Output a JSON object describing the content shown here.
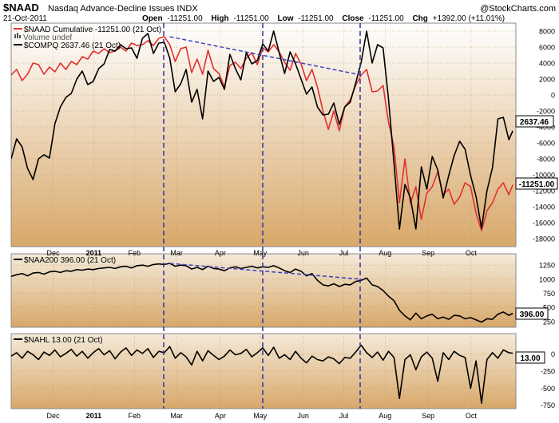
{
  "header": {
    "symbol": "$NAAD",
    "description": "Nasdaq Advance-Decline Issues  INDX",
    "brand": "@StockCharts.com",
    "date": "21-Oct-2011",
    "open_label": "Open",
    "open_value": "-11251.00",
    "high_label": "High",
    "high_value": "-11251.00",
    "low_label": "Low",
    "low_value": "-11251.00",
    "close_label": "Close",
    "close_value": "-11251.00",
    "chg_label": "Chg",
    "chg_value": "+1392.00 (+11.01%)"
  },
  "colors": {
    "panel_bg_top": "#ffffff",
    "panel_bg_bottom": "#d8a86a",
    "naad_line": "#e03030",
    "compq_line": "#000000",
    "trendline": "#4040c0",
    "grid": "#b08050",
    "last_value_box": "#ffffff"
  },
  "chart_data": [
    {
      "type": "line",
      "panel": "main",
      "ylim": [
        -19000,
        9000
      ],
      "yticks": [
        8000,
        6000,
        4000,
        2000,
        0,
        -2000,
        -4000,
        -6000,
        -8000,
        -10000,
        -12000,
        -14000,
        -16000,
        -18000
      ],
      "grid": true,
      "legend_position": "top-left",
      "legend": [
        "$NAAD Cumulative -11251.00 (21 Oct)",
        "Volume undef",
        "$COMPQ 2637.46 (21 Oct)"
      ],
      "last_values": [
        "2637.46",
        "-11251.00"
      ],
      "series": [
        {
          "name": "$NAAD Cumulative",
          "color": "#e03030",
          "x": [
            0,
            7,
            14,
            21,
            28,
            35,
            42,
            49,
            56,
            63,
            70,
            77,
            84,
            91,
            98,
            105,
            112,
            119,
            126,
            133,
            140,
            147,
            154,
            161,
            168,
            175,
            182,
            189,
            196,
            203,
            210,
            217,
            224,
            231,
            238,
            245,
            252,
            259,
            266,
            273,
            280,
            287,
            294,
            301,
            308,
            315,
            322,
            329,
            336,
            343,
            350,
            357,
            364,
            371,
            378,
            385,
            392,
            399,
            406,
            413,
            420,
            427,
            434,
            441,
            448,
            455,
            462,
            469,
            476,
            483,
            490,
            497,
            504,
            511,
            518,
            525,
            532,
            539,
            546,
            553,
            560,
            567,
            574,
            581,
            588,
            595,
            602,
            609,
            616,
            623,
            630,
            637,
            642
          ],
          "y": [
            2500,
            3200,
            1800,
            2600,
            4000,
            3800,
            2600,
            3500,
            2900,
            4000,
            3200,
            4200,
            3800,
            4800,
            4500,
            5500,
            5200,
            5800,
            5300,
            5500,
            6000,
            5500,
            6500,
            6200,
            6300,
            6800,
            6200,
            7100,
            7300,
            6300,
            4200,
            5800,
            6000,
            2800,
            4500,
            2600,
            5600,
            3300,
            2700,
            1000,
            3700,
            4100,
            3300,
            4600,
            5300,
            3800,
            5900,
            5400,
            6300,
            5400,
            4100,
            3100,
            5200,
            3900,
            1800,
            3200,
            1000,
            -2000,
            -4300,
            -2000,
            -4500,
            -1500,
            -600,
            1200,
            2500,
            3200,
            400,
            500,
            1200,
            -3400,
            -6500,
            -13500,
            -8000,
            -13600,
            -11500,
            -15600,
            -12300,
            -11500,
            -9600,
            -12500,
            -11800,
            -13700,
            -12800,
            -11000,
            -11500,
            -14800,
            -17000,
            -14500,
            -13500,
            -11800,
            -11000,
            -12500,
            -11251
          ]
        },
        {
          "name": "$COMPQ",
          "color": "#000000",
          "x": [
            0,
            7,
            14,
            21,
            28,
            35,
            42,
            49,
            56,
            63,
            70,
            77,
            84,
            91,
            98,
            105,
            112,
            119,
            126,
            133,
            140,
            147,
            154,
            161,
            168,
            175,
            182,
            189,
            196,
            203,
            210,
            217,
            224,
            231,
            238,
            245,
            252,
            259,
            266,
            273,
            280,
            287,
            294,
            301,
            308,
            315,
            322,
            329,
            336,
            343,
            350,
            357,
            364,
            371,
            378,
            385,
            392,
            399,
            406,
            413,
            420,
            427,
            434,
            441,
            448,
            455,
            462,
            469,
            476,
            483,
            490,
            497,
            504,
            511,
            518,
            525,
            532,
            539,
            546,
            553,
            560,
            567,
            574,
            581,
            588,
            595,
            602,
            609,
            616,
            623,
            630,
            637,
            642
          ],
          "y": [
            -8000,
            -5500,
            -6500,
            -9200,
            -10600,
            -8000,
            -7500,
            -7900,
            -3600,
            -1500,
            -300,
            200,
            2000,
            3000,
            1300,
            1700,
            3300,
            3900,
            5700,
            5500,
            6300,
            5800,
            5900,
            4600,
            7100,
            7700,
            5200,
            6500,
            6600,
            4600,
            400,
            1400,
            3200,
            -900,
            700,
            -3000,
            3000,
            1700,
            2200,
            700,
            5100,
            3300,
            1900,
            5300,
            3900,
            4300,
            6400,
            5500,
            8000,
            5300,
            2700,
            5400,
            3900,
            2000,
            100,
            1000,
            -1500,
            -2500,
            -2400,
            -1000,
            -3700,
            -1500,
            -900,
            1500,
            4100,
            8000,
            4000,
            6300,
            5900,
            -500,
            -8600,
            -16800,
            -11200,
            -12900,
            -16800,
            -9000,
            -11800,
            -7700,
            -9400,
            -12900,
            -10100,
            -7600,
            -5800,
            -6800,
            -10100,
            -12700,
            -16700,
            -12000,
            -9100,
            -3000,
            -2800,
            -5600,
            -4500
          ]
        }
      ],
      "trendlines": [
        {
          "x": [
            203,
            448
          ],
          "y": [
            7300,
            2500
          ]
        }
      ]
    },
    {
      "type": "line",
      "panel": "middle",
      "ylim": [
        150,
        1450
      ],
      "yticks": [
        1250,
        1000,
        750,
        500,
        250
      ],
      "grid": true,
      "legend": [
        "$NAA200 396.00 (21 Oct)"
      ],
      "last_value": "396.00",
      "series": [
        {
          "name": "$NAA200",
          "color": "#000000",
          "x": [
            0,
            7,
            14,
            21,
            28,
            35,
            42,
            49,
            56,
            63,
            70,
            77,
            84,
            91,
            98,
            105,
            112,
            119,
            126,
            133,
            140,
            147,
            154,
            161,
            168,
            175,
            182,
            189,
            196,
            203,
            210,
            217,
            224,
            231,
            238,
            245,
            252,
            259,
            266,
            273,
            280,
            287,
            294,
            301,
            308,
            315,
            322,
            329,
            336,
            343,
            350,
            357,
            364,
            371,
            378,
            385,
            392,
            399,
            406,
            413,
            420,
            427,
            434,
            441,
            448,
            455,
            462,
            469,
            476,
            483,
            490,
            497,
            504,
            511,
            518,
            525,
            532,
            539,
            546,
            553,
            560,
            567,
            574,
            581,
            588,
            595,
            602,
            609,
            616,
            623,
            630,
            637,
            642
          ],
          "y": [
            1050,
            1080,
            1100,
            1060,
            1110,
            1120,
            1090,
            1130,
            1140,
            1120,
            1150,
            1140,
            1170,
            1160,
            1180,
            1170,
            1190,
            1200,
            1210,
            1190,
            1220,
            1230,
            1200,
            1240,
            1250,
            1230,
            1260,
            1270,
            1260,
            1280,
            1230,
            1250,
            1240,
            1180,
            1210,
            1170,
            1230,
            1190,
            1180,
            1150,
            1200,
            1220,
            1190,
            1210,
            1230,
            1200,
            1220,
            1210,
            1240,
            1200,
            1150,
            1120,
            1180,
            1140,
            1060,
            1100,
            980,
            900,
            880,
            920,
            870,
            910,
            900,
            960,
            980,
            1020,
            900,
            870,
            800,
            700,
            620,
            450,
            350,
            280,
            400,
            300,
            350,
            380,
            300,
            330,
            290,
            360,
            350,
            300,
            320,
            280,
            240,
            300,
            290,
            380,
            420,
            360,
            396
          ]
        }
      ],
      "trendlines": [
        {
          "x": [
            203,
            448
          ],
          "y": [
            1280,
            1000
          ]
        }
      ]
    },
    {
      "type": "line",
      "panel": "bottom",
      "ylim": [
        -800,
        300
      ],
      "yticks": [
        0,
        -250,
        -500,
        -750
      ],
      "grid": true,
      "legend": [
        "$NAHL 13.00 (21 Oct)"
      ],
      "last_value": "13.00",
      "series": [
        {
          "name": "$NAHL",
          "color": "#000000",
          "x": [
            0,
            7,
            14,
            21,
            28,
            35,
            42,
            49,
            56,
            63,
            70,
            77,
            84,
            91,
            98,
            105,
            112,
            119,
            126,
            133,
            140,
            147,
            154,
            161,
            168,
            175,
            182,
            189,
            196,
            203,
            210,
            217,
            224,
            231,
            238,
            245,
            252,
            259,
            266,
            273,
            280,
            287,
            294,
            301,
            308,
            315,
            322,
            329,
            336,
            343,
            350,
            357,
            364,
            371,
            378,
            385,
            392,
            399,
            406,
            413,
            420,
            427,
            434,
            441,
            448,
            455,
            462,
            469,
            476,
            483,
            490,
            497,
            504,
            511,
            518,
            525,
            532,
            539,
            546,
            553,
            560,
            567,
            574,
            581,
            588,
            595,
            602,
            609,
            616,
            623,
            630,
            637,
            642
          ],
          "y": [
            -30,
            20,
            -60,
            40,
            -10,
            -80,
            30,
            -20,
            60,
            -40,
            10,
            70,
            -30,
            40,
            -60,
            20,
            80,
            -10,
            50,
            -70,
            30,
            90,
            -20,
            60,
            10,
            80,
            -50,
            40,
            20,
            110,
            -60,
            20,
            -40,
            -160,
            40,
            -100,
            50,
            -20,
            -80,
            -30,
            60,
            -10,
            10,
            70,
            -40,
            20,
            90,
            -20,
            100,
            -60,
            -10,
            -80,
            40,
            -60,
            -130,
            -30,
            -80,
            -100,
            -40,
            -70,
            -140,
            -50,
            -60,
            30,
            130,
            20,
            -50,
            30,
            -90,
            40,
            -50,
            -650,
            -80,
            -10,
            -230,
            -40,
            30,
            -60,
            -400,
            20,
            -80,
            40,
            -20,
            -50,
            -500,
            -100,
            -720,
            -80,
            20,
            -60,
            60,
            20,
            13
          ]
        }
      ]
    }
  ],
  "x_axis": {
    "labels": [
      {
        "label": "Dec",
        "x": 68
      },
      {
        "label": "2011",
        "x": 120,
        "bold": true
      },
      {
        "label": "Feb",
        "x": 172
      },
      {
        "label": "Mar",
        "x": 226
      },
      {
        "label": "Apr",
        "x": 282
      },
      {
        "label": "May",
        "x": 333
      },
      {
        "label": "Jun",
        "x": 388
      },
      {
        "label": "Jul",
        "x": 440
      },
      {
        "label": "Aug",
        "x": 493
      },
      {
        "label": "Sep",
        "x": 548
      },
      {
        "label": "Oct",
        "x": 603
      }
    ],
    "verticals": [
      205,
      329,
      451
    ]
  }
}
